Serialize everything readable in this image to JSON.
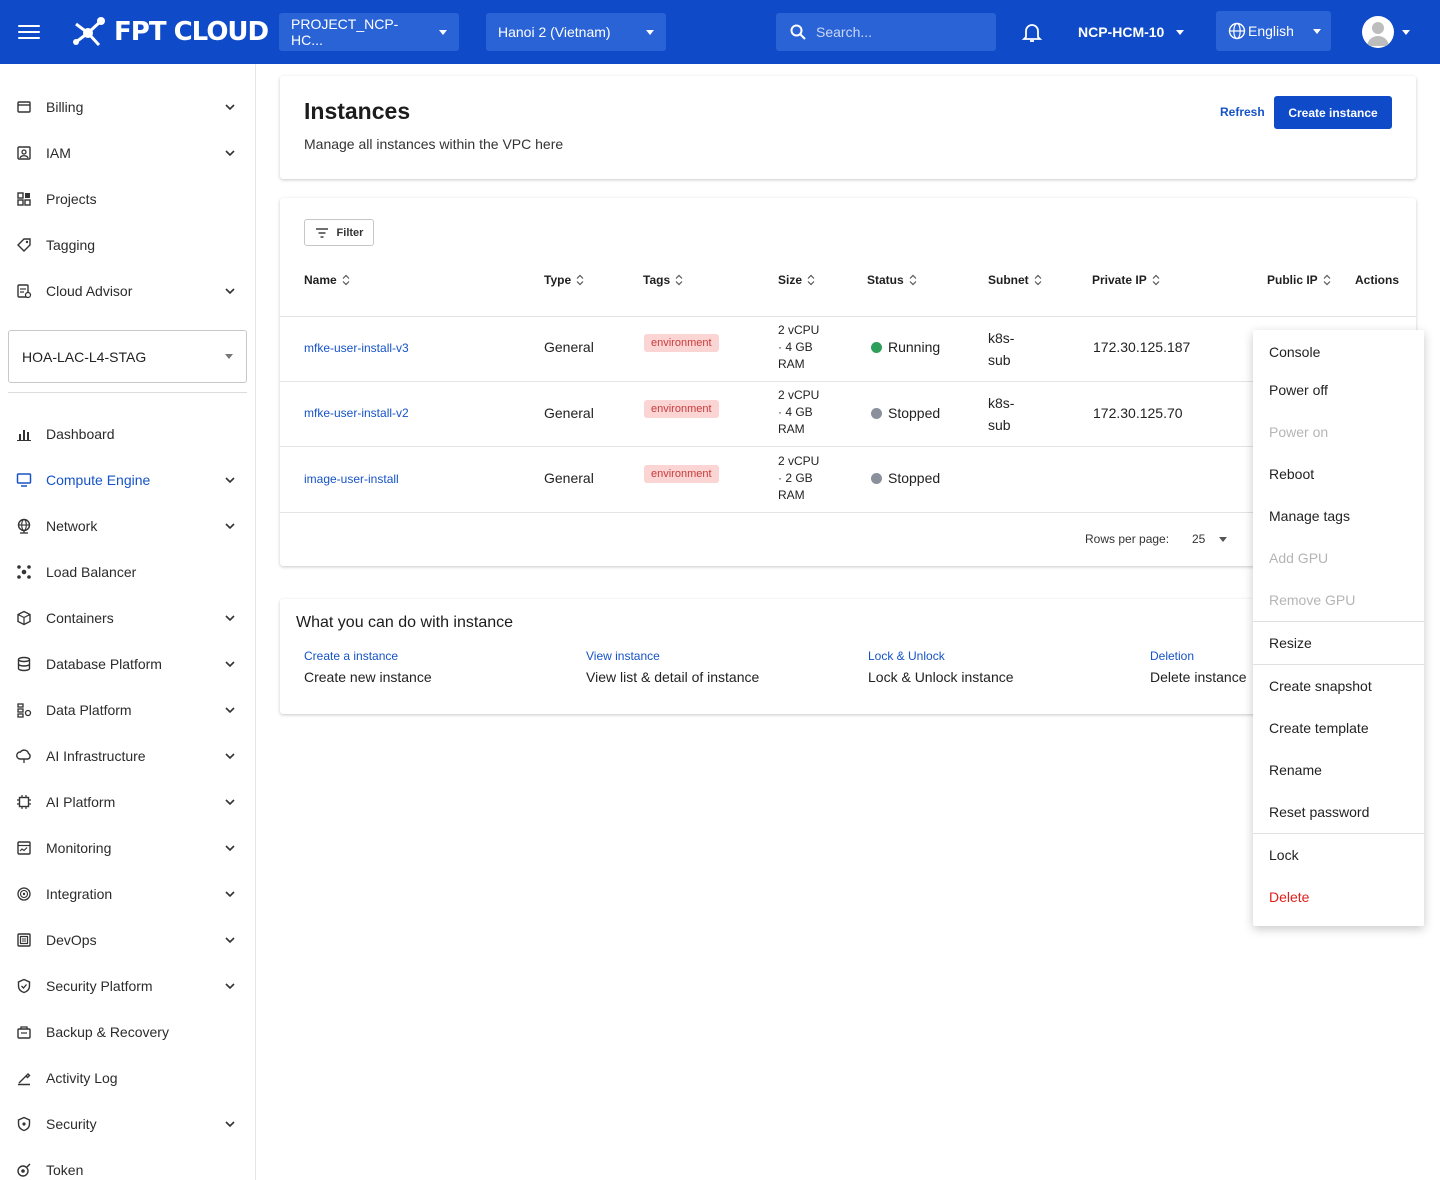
{
  "header": {
    "logo": "FPT CLOUD",
    "project": "PROJECT_NCP-HC...",
    "region": "Hanoi 2 (Vietnam)",
    "search_placeholder": "Search...",
    "org": "NCP-HCM-10",
    "language": "English"
  },
  "sidebar": {
    "top_items": [
      {
        "label": "Billing",
        "icon": "billing-icon"
      },
      {
        "label": "IAM",
        "icon": "iam-icon"
      },
      {
        "label": "Projects",
        "icon": "projects-icon"
      },
      {
        "label": "Tagging",
        "icon": "tag-icon"
      },
      {
        "label": "Cloud Advisor",
        "icon": "cloud-advisor-icon"
      }
    ],
    "org_select": "HOA-LAC-L4-STAG",
    "items": [
      {
        "label": "Dashboard",
        "icon": "dashboard-icon"
      },
      {
        "label": "Compute Engine",
        "icon": "monitor-icon"
      },
      {
        "label": "Network",
        "icon": "network-icon"
      },
      {
        "label": "Load Balancer",
        "icon": "load-balancer-icon"
      },
      {
        "label": "Containers",
        "icon": "container-icon"
      },
      {
        "label": "Database Platform",
        "icon": "database-icon"
      },
      {
        "label": "Data Platform",
        "icon": "data-platform-icon"
      },
      {
        "label": "AI Infrastructure",
        "icon": "ai-infra-icon"
      },
      {
        "label": "AI Platform",
        "icon": "chip-icon"
      },
      {
        "label": "Monitoring",
        "icon": "monitoring-icon"
      },
      {
        "label": "Integration",
        "icon": "integration-icon"
      },
      {
        "label": "DevOps",
        "icon": "devops-icon"
      },
      {
        "label": "Security Platform",
        "icon": "security-platform-icon"
      },
      {
        "label": "Backup & Recovery",
        "icon": "backup-icon"
      },
      {
        "label": "Activity Log",
        "icon": "activity-log-icon"
      },
      {
        "label": "Security",
        "icon": "security-icon"
      },
      {
        "label": "Token",
        "icon": "token-icon"
      }
    ]
  },
  "page": {
    "title": "Instances",
    "subtitle": "Manage all instances within the VPC here",
    "refresh": "Refresh",
    "create": "Create instance"
  },
  "table": {
    "filter": "Filter",
    "headers": [
      "Name",
      "Type",
      "Tags",
      "Size",
      "Status",
      "Subnet",
      "Private IP",
      "Public IP",
      "Actions"
    ],
    "rows": [
      {
        "name": "mfke-user-install-v3",
        "type": "General",
        "tag": "environment",
        "size": [
          "2 vCPU",
          "· 4 GB",
          "RAM"
        ],
        "status": "Running",
        "subnet": [
          "k8s-",
          "sub"
        ],
        "private_ip": "172.30.125.187"
      },
      {
        "name": "mfke-user-install-v2",
        "type": "General",
        "tag": "environment",
        "size": [
          "2 vCPU",
          "· 4 GB",
          "RAM"
        ],
        "status": "Stopped",
        "subnet": [
          "k8s-",
          "sub"
        ],
        "private_ip": "172.30.125.70"
      },
      {
        "name": "image-user-install",
        "type": "General",
        "tag": "environment",
        "size": [
          "2 vCPU",
          "· 2 GB",
          "RAM"
        ],
        "status": "Stopped",
        "subnet": [
          "",
          ""
        ],
        "private_ip": ""
      }
    ],
    "rows_per_page_label": "Rows per page:",
    "rows_per_page": "25"
  },
  "tiles": {
    "title": "What you can do with instance",
    "items": [
      {
        "link": "Create a instance",
        "desc": "Create new instance"
      },
      {
        "link": "View instance",
        "desc": "View list & detail of instance"
      },
      {
        "link": "Lock & Unlock",
        "desc": "Lock & Unlock instance"
      },
      {
        "link": "Deletion",
        "desc": "Delete instance"
      }
    ]
  },
  "menu": {
    "items": [
      "Console",
      "Power off",
      "Power on",
      "Reboot",
      "Manage tags",
      "Add GPU",
      "Remove GPU",
      "Resize",
      "Create snapshot",
      "Create template",
      "Rename",
      "Reset password",
      "Lock",
      "Delete"
    ]
  },
  "colors": {
    "primary": "#0f4bc8",
    "running": "#2e9e5b",
    "stopped": "#8a909c",
    "danger": "#e0201e"
  }
}
